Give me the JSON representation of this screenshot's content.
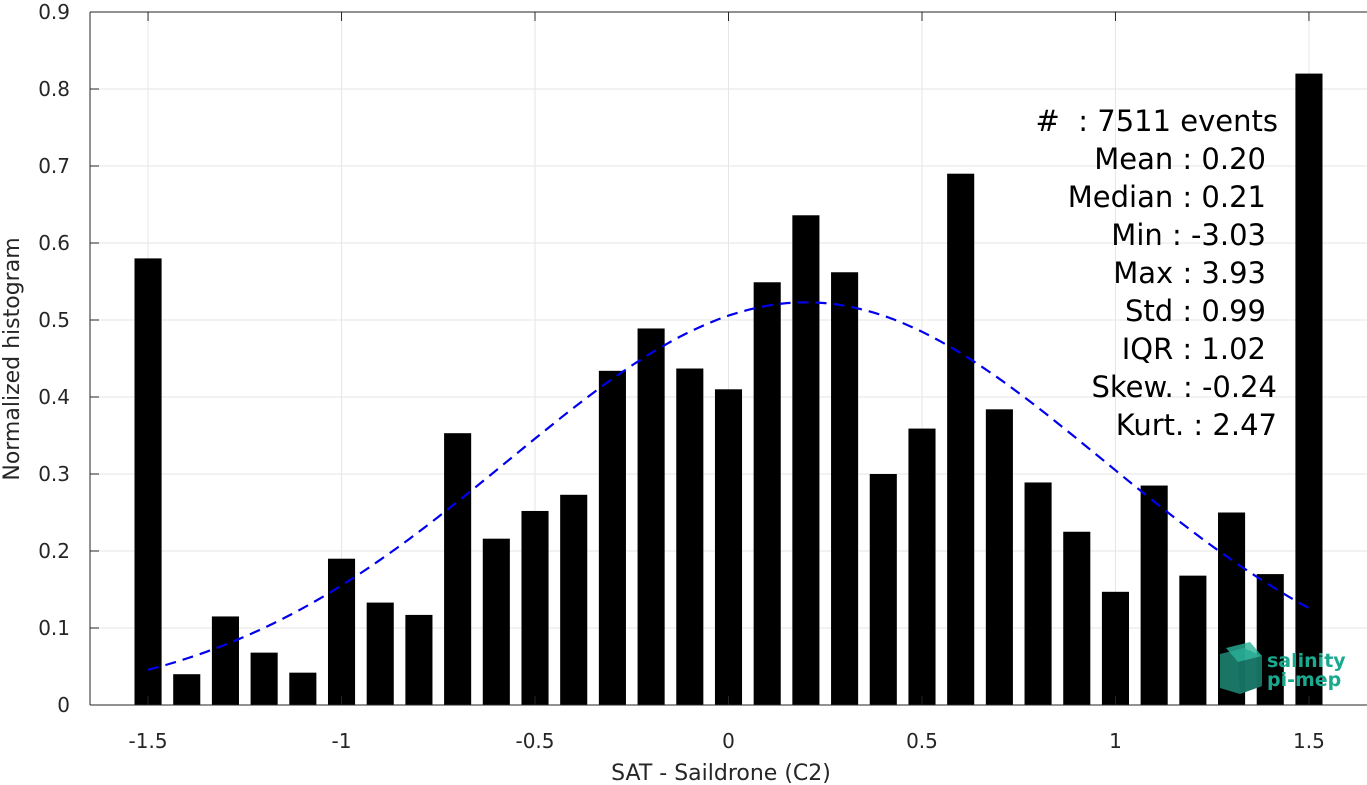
{
  "chart_data": {
    "type": "bar",
    "xlabel": "SAT - Saildrone (C2)",
    "ylabel": "Normalized histogram",
    "xlim": [
      -1.65,
      1.65
    ],
    "ylim": [
      0,
      0.9
    ],
    "xticks": [
      -1.5,
      -1,
      -0.5,
      0,
      0.5,
      1,
      1.5
    ],
    "xtick_labels": [
      "-1.5",
      "-1",
      "-0.5",
      "0",
      "0.5",
      "1",
      "1.5"
    ],
    "yticks": [
      0,
      0.1,
      0.2,
      0.3,
      0.4,
      0.5,
      0.6,
      0.7,
      0.8,
      0.9
    ],
    "ytick_labels": [
      "0",
      "0.1",
      "0.2",
      "0.3",
      "0.4",
      "0.5",
      "0.6",
      "0.7",
      "0.8",
      "0.9"
    ],
    "grid": true,
    "bar_color": "#000000",
    "bar_width": 0.07,
    "x": [
      -1.5,
      -1.4,
      -1.3,
      -1.2,
      -1.1,
      -1.0,
      -0.9,
      -0.8,
      -0.7,
      -0.6,
      -0.5,
      -0.4,
      -0.3,
      -0.2,
      -0.1,
      0.0,
      0.1,
      0.2,
      0.3,
      0.4,
      0.5,
      0.6,
      0.7,
      0.8,
      0.9,
      1.0,
      1.1,
      1.2,
      1.3,
      1.4,
      1.5
    ],
    "values": [
      0.58,
      0.04,
      0.115,
      0.068,
      0.042,
      0.19,
      0.133,
      0.117,
      0.353,
      0.216,
      0.252,
      0.273,
      0.434,
      0.489,
      0.437,
      0.41,
      0.549,
      0.636,
      0.562,
      0.3,
      0.359,
      0.69,
      0.384,
      0.289,
      0.225,
      0.147,
      0.285,
      0.168,
      0.25,
      0.17,
      0.82
    ],
    "fit_curve": {
      "style": "dashed",
      "color": "#0000ee",
      "mean": 0.2,
      "std": 0.77,
      "peak": 0.523,
      "x_range": [
        -1.5,
        1.5
      ]
    },
    "stats": [
      "#  : 7511 events",
      "Mean : 0.20",
      "Median : 0.21",
      "Min : -3.03",
      "Max : 3.93",
      "Std : 0.99",
      "IQR : 1.02",
      "Skew. : -0.24",
      "Kurt. : 2.47"
    ],
    "logo": [
      "salinity",
      "pi-mep"
    ]
  }
}
